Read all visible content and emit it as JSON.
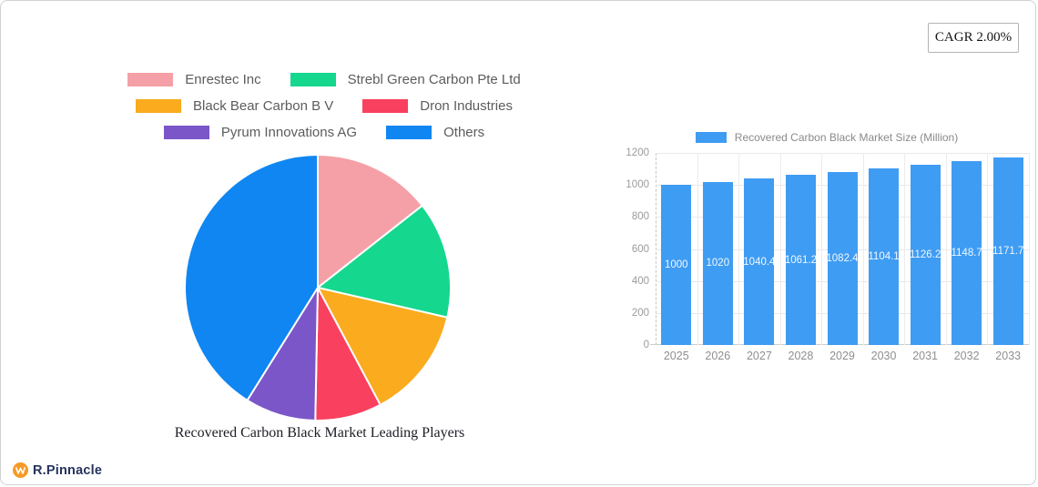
{
  "cagr_badge": {
    "label": "CAGR 2.00%"
  },
  "logo": {
    "text": "R.Pinnacle",
    "icon_bg": "#f59b25"
  },
  "chart_data": [
    {
      "type": "pie",
      "title": "Recovered Carbon Black Market Leading Players",
      "legend_position": "top",
      "start_angle_deg": -90,
      "direction": "clockwise",
      "slice_border_color": "#ffffff",
      "series": [
        {
          "name": "Enrestec Inc",
          "value": 14.4,
          "color": "#f5a0a7"
        },
        {
          "name": "Strebl Green Carbon Pte Ltd",
          "value": 14.2,
          "color": "#15d78e"
        },
        {
          "name": "Black Bear Carbon B V",
          "value": 13.6,
          "color": "#faab1e"
        },
        {
          "name": "Dron Industries",
          "value": 8.1,
          "color": "#f9405f"
        },
        {
          "name": "Pyrum Innovations AG",
          "value": 8.6,
          "color": "#7b56c8"
        },
        {
          "name": "Others",
          "value": 41.1,
          "color": "#0f86f1"
        }
      ]
    },
    {
      "type": "bar",
      "legend": "Recovered Carbon Black Market Size (Million)",
      "legend_position": "top",
      "categories": [
        "2025",
        "2026",
        "2027",
        "2028",
        "2029",
        "2030",
        "2031",
        "2032",
        "2033"
      ],
      "values": [
        1000,
        1020,
        1040.4,
        1061.2,
        1082.4,
        1104.1,
        1126.2,
        1148.7,
        1171.7
      ],
      "value_labels": [
        "1000",
        "1020",
        "1040.4",
        "1061.2",
        "1082.4",
        "1104.1",
        "1126.2",
        "1148.7",
        "1171.7"
      ],
      "bar_color": "#3f9cf3",
      "ylim": [
        0,
        1200
      ],
      "yticks": [
        0,
        200,
        400,
        600,
        800,
        1000,
        1200
      ],
      "grid": true
    }
  ]
}
